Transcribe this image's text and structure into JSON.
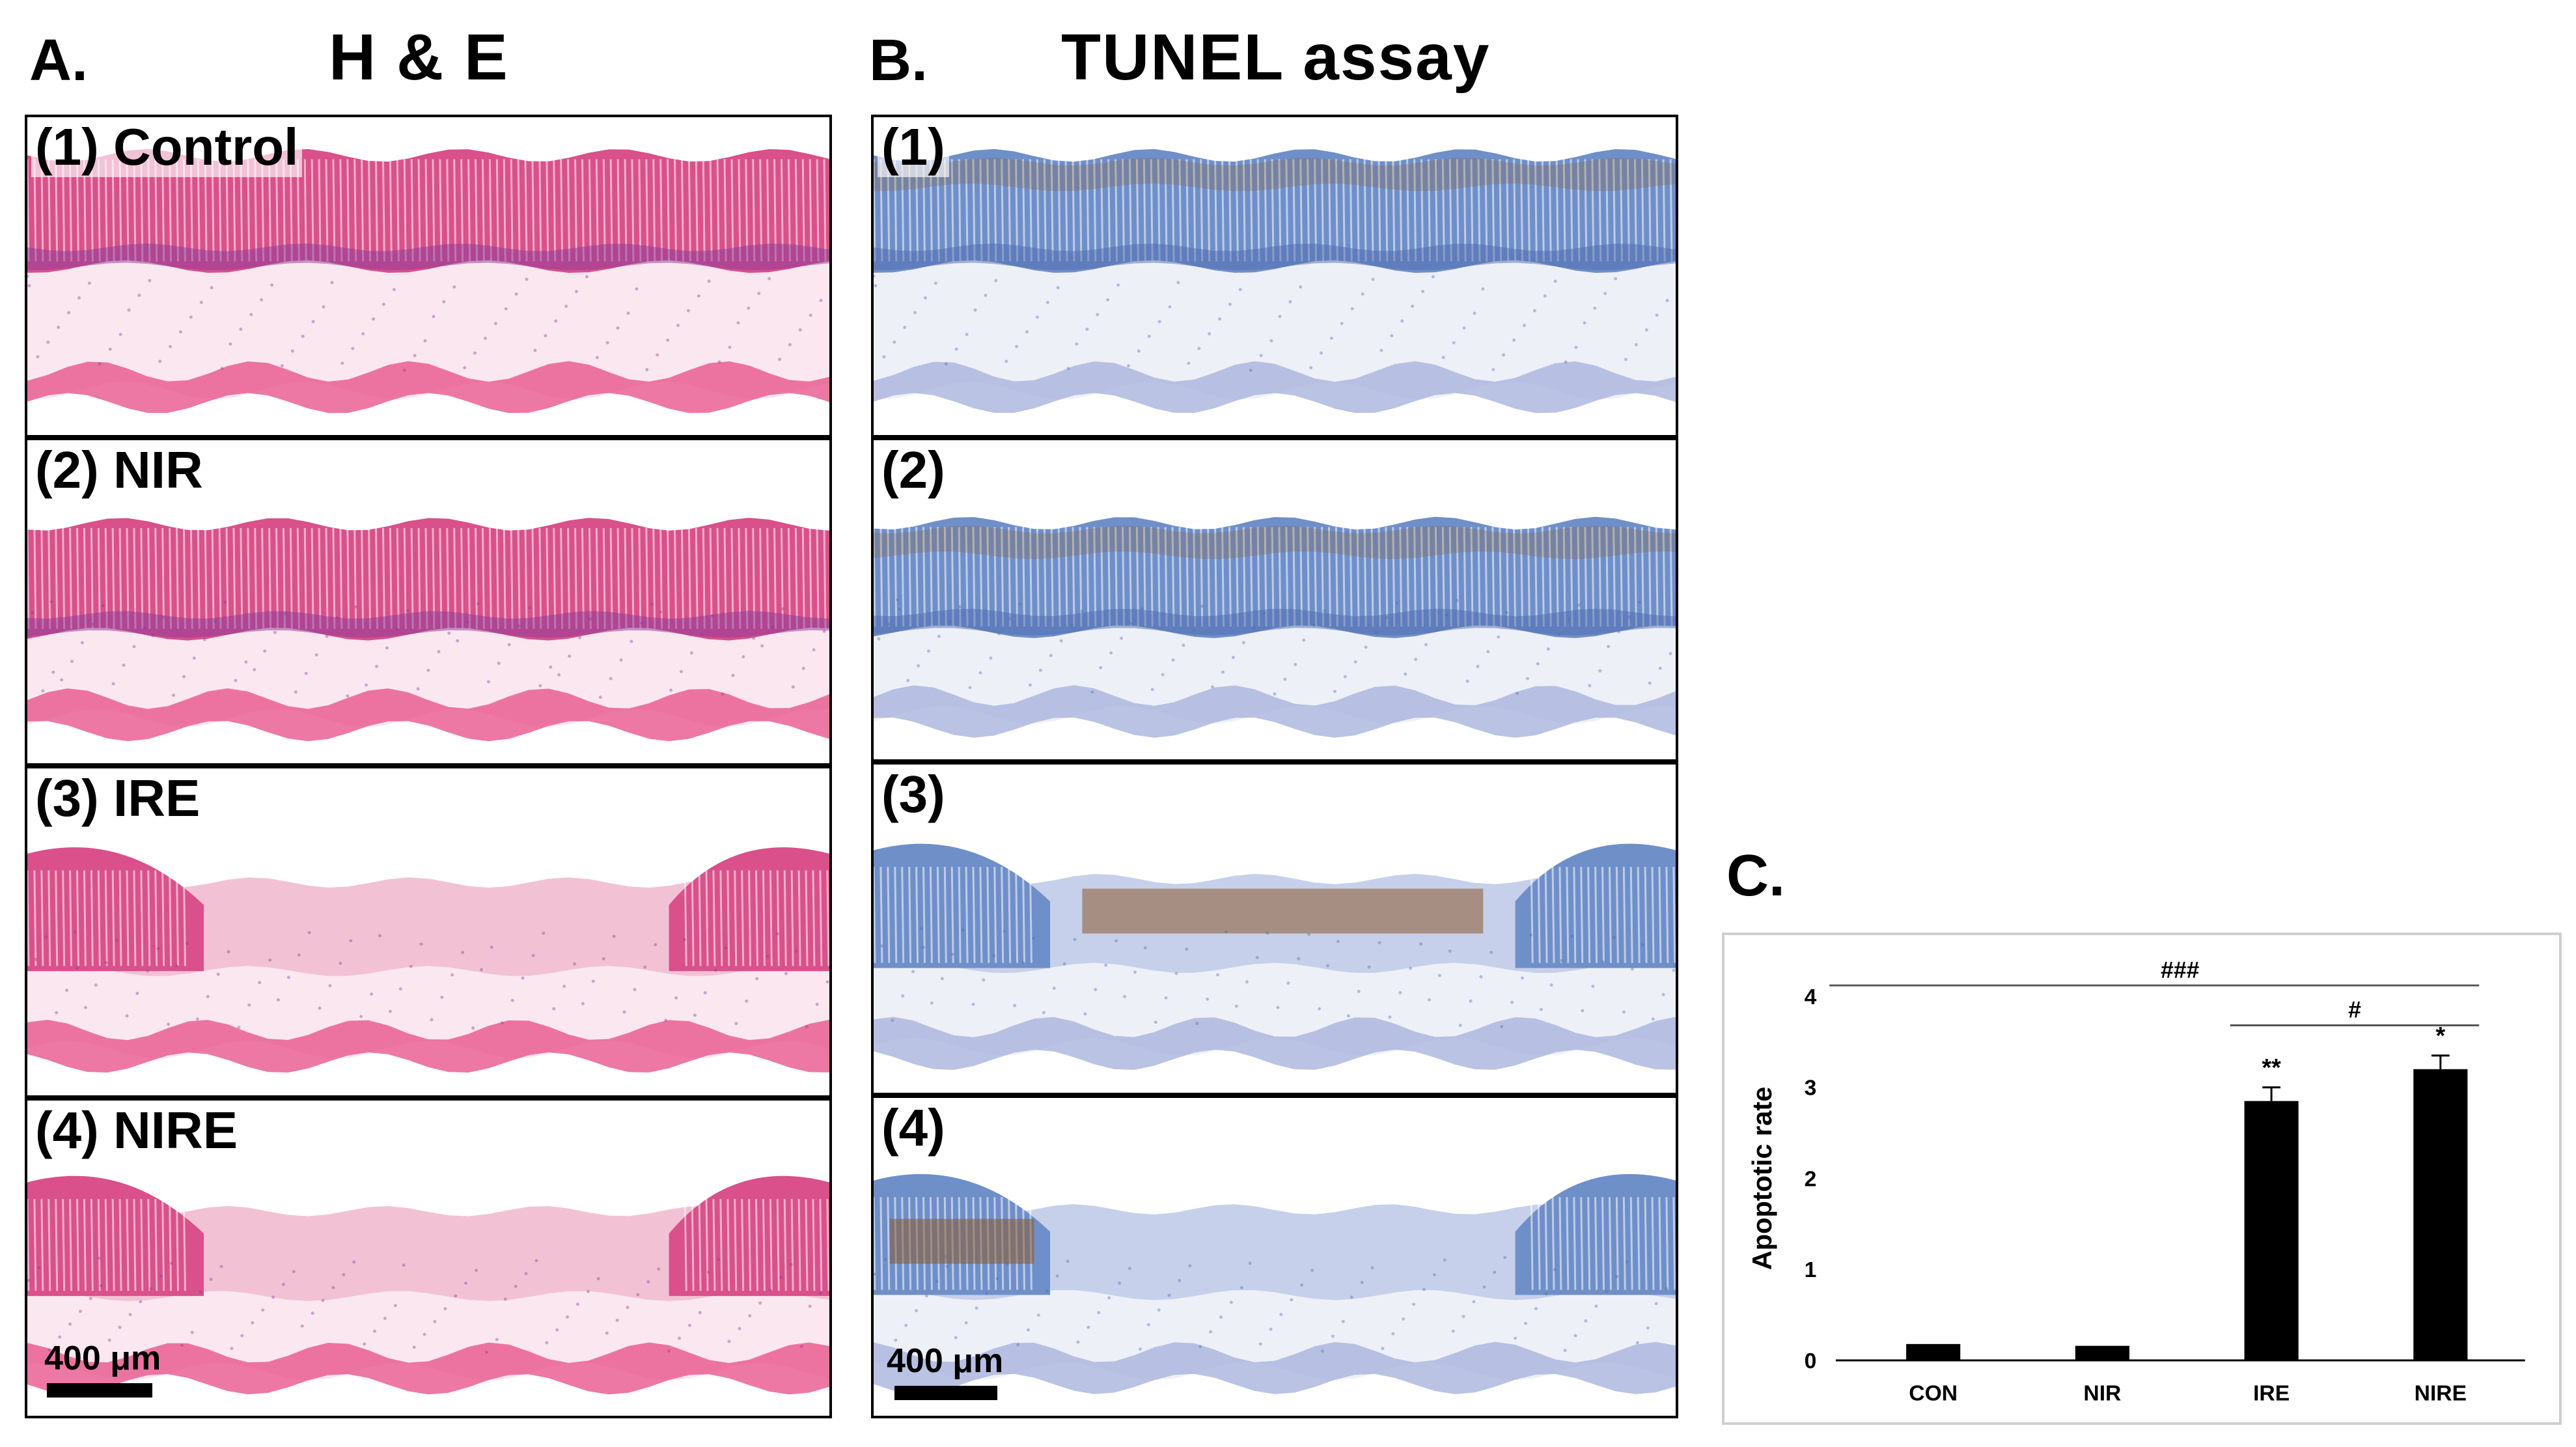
{
  "panels": {
    "a": {
      "letter": "A.",
      "title": "H & E"
    },
    "b": {
      "letter": "B.",
      "title": "TUNEL assay"
    },
    "c": {
      "letter": "C."
    }
  },
  "he_images": [
    {
      "label": "(1) Control",
      "condition": "Control"
    },
    {
      "label": "(2) NIR",
      "condition": "NIR"
    },
    {
      "label": "(3) IRE",
      "condition": "IRE"
    },
    {
      "label": "(4) NIRE",
      "condition": "NIRE"
    }
  ],
  "tunel_images": [
    {
      "label": "(1)"
    },
    {
      "label": "(2)"
    },
    {
      "label": "(3)"
    },
    {
      "label": "(4)"
    }
  ],
  "scale_bar": {
    "he_label": "400 μm",
    "tunel_label": "400 μm"
  },
  "colors": {
    "he_mucosa": "#d9508a",
    "he_mucosa_dark": "#8a3a9a",
    "he_pale": "#f2c2d4",
    "he_muscle": "#e8568c",
    "tunel_mucosa": "#6f8fc9",
    "tunel_pale": "#c7d0ea",
    "tunel_brown": "#8a5a2b"
  },
  "chart_data": {
    "type": "bar",
    "categories": [
      "CON",
      "NIR",
      "IRE",
      "NIRE"
    ],
    "values": [
      0.18,
      0.16,
      2.85,
      3.2
    ],
    "errors": [
      0.0,
      0.0,
      0.15,
      0.15
    ],
    "ylabel": "Apoptotic rate",
    "ylim": [
      0,
      4
    ],
    "yticks": [
      0,
      1,
      2,
      3,
      4
    ],
    "significance": [
      {
        "label": "**",
        "category": "IRE"
      },
      {
        "label": "*",
        "category": "NIRE"
      }
    ],
    "brackets": [
      {
        "label": "###",
        "from": "CON",
        "to": "NIRE"
      },
      {
        "label": "#",
        "from": "IRE",
        "to": "NIRE"
      }
    ],
    "bar_color": "#000000"
  }
}
